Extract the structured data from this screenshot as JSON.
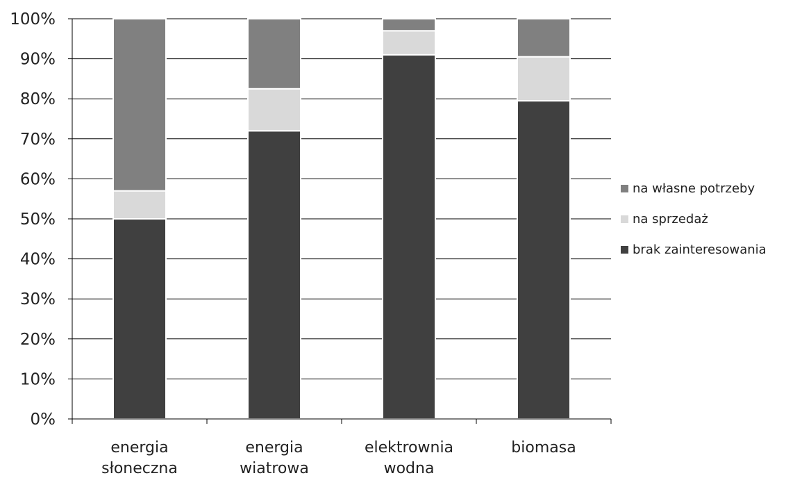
{
  "chart_data": {
    "type": "bar",
    "stacked": true,
    "normalized": true,
    "categories": [
      [
        "energia",
        "słoneczna"
      ],
      [
        "energia",
        "wiatrowa"
      ],
      [
        "elektrownia",
        "wodna"
      ],
      [
        "biomasa"
      ]
    ],
    "series": [
      {
        "name": "brak zainteresowania",
        "color": "#404040",
        "values": [
          50,
          72,
          91,
          79.5
        ]
      },
      {
        "name": "na sprzedaż",
        "color": "#d9d9d9",
        "values": [
          7,
          10.5,
          6,
          11
        ]
      },
      {
        "name": "na własne potrzeby",
        "color": "#808080",
        "values": [
          43,
          17.5,
          3,
          9.5
        ]
      }
    ],
    "ylim": [
      0,
      100
    ],
    "yticks": [
      "0%",
      "10%",
      "20%",
      "30%",
      "40%",
      "50%",
      "60%",
      "70%",
      "80%",
      "90%",
      "100%"
    ],
    "legend_position": "right",
    "legend_order": [
      "na własne potrzeby",
      "na sprzedaż",
      "brak zainteresowania"
    ],
    "grid": true
  }
}
